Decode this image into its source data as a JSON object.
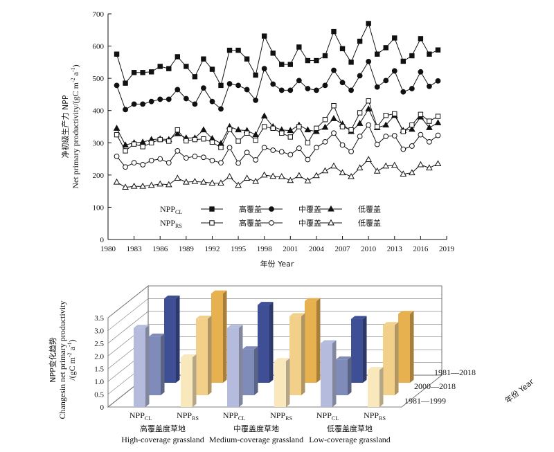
{
  "chart_data": [
    {
      "type": "line",
      "ylabel_cn": "净初级生产力 NPP",
      "ylabel_en": "Net primary productivity/(gC m",
      "ylabel_sup": "-2",
      "ylabel_mid": " a",
      "ylabel_sup2": "-1",
      "ylabel_end": ")",
      "xlabel": "年份 Year",
      "xlim": [
        1980,
        2019
      ],
      "ylim": [
        0,
        700
      ],
      "xticks": [
        "1980",
        "1983",
        "1986",
        "1989",
        "1992",
        "1995",
        "1998",
        "2001",
        "2004",
        "2007",
        "2010",
        "2013",
        "2016",
        "2019"
      ],
      "yticks": [
        "0",
        "100",
        "200",
        "300",
        "400",
        "500",
        "600",
        "700"
      ],
      "legend": {
        "row1": {
          "base": "NPP",
          "sub": "CL"
        },
        "row2": {
          "base": "NPP",
          "sub": "RS"
        },
        "high": "高覆盖",
        "medium": "中覆盖",
        "low": "低覆盖"
      },
      "x": [
        1981,
        1982,
        1983,
        1984,
        1985,
        1986,
        1987,
        1988,
        1989,
        1990,
        1991,
        1992,
        1993,
        1994,
        1995,
        1996,
        1997,
        1998,
        1999,
        2000,
        2001,
        2002,
        2003,
        2004,
        2005,
        2006,
        2007,
        2008,
        2009,
        2010,
        2011,
        2012,
        2013,
        2014,
        2015,
        2016,
        2017,
        2018
      ],
      "series": [
        {
          "key": "cl_high",
          "marker": "square",
          "fill": "filled",
          "values": [
            575,
            485,
            518,
            518,
            520,
            537,
            530,
            567,
            537,
            505,
            560,
            528,
            478,
            587,
            587,
            560,
            510,
            631,
            578,
            543,
            543,
            597,
            555,
            555,
            570,
            645,
            592,
            550,
            615,
            670,
            575,
            595,
            625,
            553,
            570,
            623,
            575,
            588
          ]
        },
        {
          "key": "cl_med",
          "marker": "circle",
          "fill": "filled",
          "values": [
            478,
            403,
            420,
            420,
            428,
            435,
            435,
            465,
            437,
            420,
            470,
            428,
            405,
            483,
            478,
            465,
            432,
            530,
            482,
            463,
            463,
            493,
            468,
            463,
            478,
            525,
            487,
            463,
            508,
            552,
            473,
            493,
            523,
            458,
            468,
            520,
            475,
            492
          ]
        },
        {
          "key": "cl_low",
          "marker": "triangle",
          "fill": "filled",
          "values": [
            345,
            293,
            300,
            302,
            310,
            312,
            310,
            328,
            315,
            315,
            340,
            313,
            298,
            350,
            340,
            338,
            325,
            383,
            350,
            340,
            338,
            355,
            340,
            335,
            348,
            375,
            358,
            335,
            360,
            405,
            347,
            355,
            385,
            338,
            342,
            380,
            347,
            362
          ]
        },
        {
          "key": "rs_high",
          "marker": "square",
          "fill": "open",
          "values": [
            325,
            275,
            296,
            288,
            300,
            310,
            305,
            340,
            306,
            310,
            312,
            302,
            285,
            342,
            305,
            330,
            308,
            350,
            345,
            330,
            318,
            350,
            300,
            345,
            372,
            415,
            350,
            340,
            393,
            430,
            350,
            385,
            390,
            335,
            355,
            388,
            367,
            382
          ]
        },
        {
          "key": "rs_med",
          "marker": "circle",
          "fill": "open",
          "values": [
            258,
            225,
            238,
            232,
            245,
            250,
            238,
            275,
            253,
            258,
            255,
            245,
            238,
            285,
            237,
            270,
            247,
            285,
            277,
            272,
            263,
            283,
            248,
            285,
            303,
            330,
            293,
            273,
            320,
            355,
            295,
            320,
            322,
            280,
            290,
            325,
            303,
            323
          ]
        },
        {
          "key": "rs_low",
          "marker": "triangle",
          "fill": "open",
          "values": [
            178,
            162,
            165,
            165,
            168,
            172,
            170,
            190,
            178,
            180,
            178,
            175,
            175,
            195,
            168,
            190,
            180,
            200,
            196,
            195,
            183,
            198,
            182,
            198,
            213,
            228,
            207,
            195,
            222,
            248,
            212,
            228,
            230,
            203,
            207,
            232,
            222,
            235
          ]
        }
      ]
    },
    {
      "type": "bar",
      "ylabel_cn": "NPP变化趋势",
      "ylabel_en": "Changesin net primary productivity",
      "ylabel_unit_a": "/(gC m",
      "ylabel_unit_sup": "-2",
      "ylabel_unit_mid": " a",
      "ylabel_unit_sup2": "-1",
      "ylabel_unit_end": ")",
      "ylim": [
        0,
        3.5
      ],
      "yticks": [
        "0",
        "0.5",
        "1.0",
        "1.5",
        "2.0",
        "2.5",
        "3.0",
        "3.5"
      ],
      "depth_labels": [
        "1981—2018",
        "2000—2018",
        "1981—1999"
      ],
      "depth_axis_title": "年份 Year",
      "groups": [
        {
          "cn": "高覆盖度草地",
          "en": "High-coverage grassland",
          "bars": [
            {
              "base": "NPP",
              "sub": "CL",
              "values": [
                3.1,
                2.3,
                3.3
              ]
            },
            {
              "base": "NPP",
              "sub": "RS",
              "values": [
                1.95,
                3.0,
                3.5
              ]
            }
          ]
        },
        {
          "cn": "中覆盖度草地",
          "en": "Medium-coverage grassland",
          "bars": [
            {
              "base": "NPP",
              "sub": "CL",
              "values": [
                3.1,
                1.8,
                3.05
              ]
            },
            {
              "base": "NPP",
              "sub": "RS",
              "values": [
                1.8,
                3.1,
                3.2
              ]
            }
          ]
        },
        {
          "cn": "低覆盖度草地",
          "en": "Low-coverage grassland",
          "bars": [
            {
              "base": "NPP",
              "sub": "CL",
              "values": [
                2.5,
                1.4,
                2.5
              ]
            },
            {
              "base": "NPP",
              "sub": "RS",
              "values": [
                1.45,
                2.75,
                2.7
              ]
            }
          ]
        }
      ],
      "colors": {
        "cl_front": "#b4bbdc",
        "cl_mid": "#7f8bb8",
        "cl_back": "#3f4f95",
        "rs_front": "#fae8bd",
        "rs_mid": "#f3d08a",
        "rs_back": "#e8b150"
      }
    }
  ]
}
